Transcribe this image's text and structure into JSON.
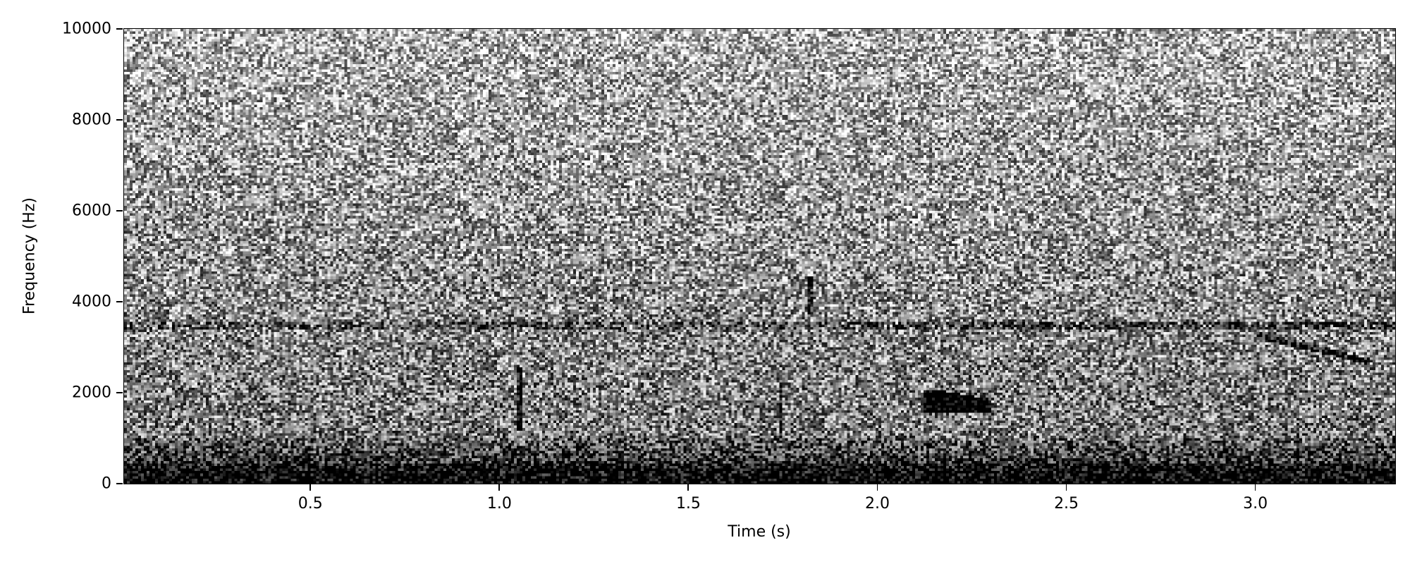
{
  "chart_data": {
    "type": "heatmap",
    "subtype": "spectrogram",
    "colormap": "gray",
    "xlabel": "Time (s)",
    "ylabel": "Frequency (Hz)",
    "xlim": [
      0.007,
      3.37
    ],
    "ylim": [
      0,
      10000
    ],
    "xticks": [
      0.5,
      1.0,
      1.5,
      2.0,
      2.5,
      3.0
    ],
    "xtick_labels": [
      "0.5",
      "1.0",
      "1.5",
      "2.0",
      "2.5",
      "3.0"
    ],
    "yticks": [
      0,
      2000,
      4000,
      6000,
      8000,
      10000
    ],
    "ytick_labels": [
      "0",
      "2000",
      "4000",
      "6000",
      "8000",
      "10000"
    ],
    "grid": false
  }
}
